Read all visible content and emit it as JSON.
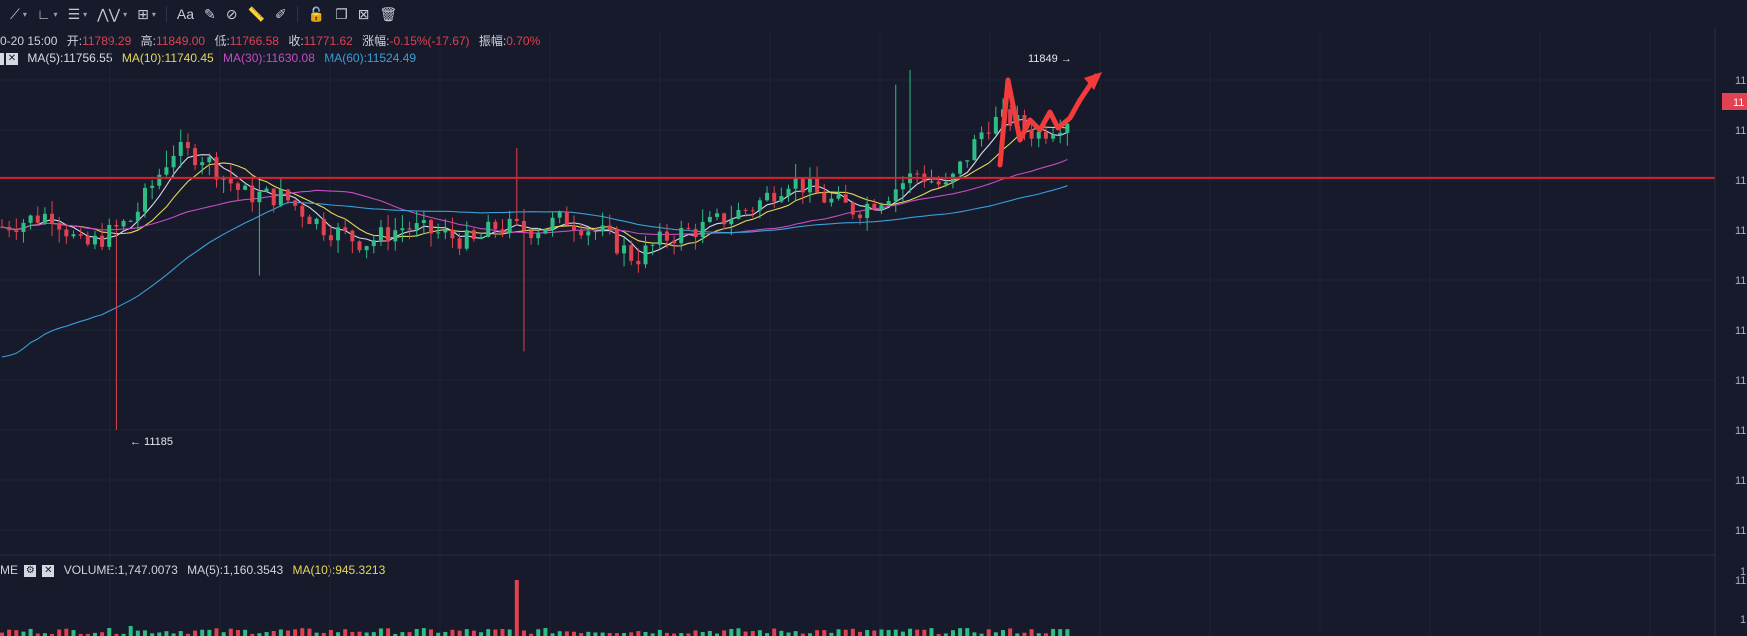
{
  "toolbar": {
    "items": [
      {
        "icon": "cross-line-icon",
        "glyph": "⟋",
        "caret": true
      },
      {
        "icon": "angle-tool-icon",
        "glyph": "∟",
        "caret": true
      },
      {
        "icon": "fib-lines-icon",
        "glyph": "☰",
        "caret": true
      },
      {
        "icon": "wave-pattern-icon",
        "glyph": "⋀⋁",
        "caret": true
      },
      {
        "icon": "rectangle-tool-icon",
        "glyph": "⊞",
        "caret": true
      },
      {
        "icon": "text-tool-icon",
        "glyph": "Aa",
        "caret": false
      },
      {
        "icon": "brush-icon",
        "glyph": "✎",
        "caret": false
      },
      {
        "icon": "eraser-icon",
        "glyph": "⊘",
        "caret": false
      },
      {
        "icon": "ruler-icon",
        "glyph": "📏",
        "caret": false
      },
      {
        "icon": "pen-icon",
        "glyph": "✐",
        "caret": false
      },
      {
        "icon": "lock-icon",
        "glyph": "🔓",
        "caret": false
      },
      {
        "icon": "copy-icon",
        "glyph": "❐",
        "caret": false
      },
      {
        "icon": "hide-icon",
        "glyph": "⊠",
        "caret": false
      },
      {
        "icon": "trash-icon",
        "glyph": "🗑",
        "caret": false
      }
    ]
  },
  "ohlc_legend": {
    "date": "0-20 15:00",
    "open_label": "开:",
    "open": "11789.29",
    "high_label": "高:",
    "high": "11849.00",
    "low_label": "低:",
    "low": "11766.58",
    "close_label": "收:",
    "close": "11771.62",
    "change_label": "涨幅:",
    "change": "-0.15%(-17.67)",
    "amp_label": "振幅:",
    "amp": "0.70%"
  },
  "ma_legend": {
    "ma5": "MA(5):11756.55",
    "ma10": "MA(10):11740.45",
    "ma30": "MA(30):11630.08",
    "ma60": "MA(60):11524.49"
  },
  "volume_legend": {
    "prefix": "ME",
    "volume": "VOLUME:1,747.0073",
    "ma5": "MA(5):1,160.3543",
    "ma10": "MA(10):945.3213"
  },
  "chart_data": {
    "type": "candlestick",
    "price_axis_ticks": [
      "11",
      "11",
      "11",
      "11",
      "11",
      "11",
      "11",
      "11",
      "11",
      "11",
      "11"
    ],
    "current_price_tag": "11",
    "volume_axis_ticks": [
      "1",
      "1"
    ],
    "annotations": {
      "high_label": "11849 →",
      "low_label": "← 11185"
    },
    "horizontal_line_price": 11650,
    "high": 11849,
    "low": 11185,
    "colors": {
      "up": "#2ebd85",
      "down": "#e0424f",
      "ma5": "#d8dbe3",
      "ma10": "#e6d85a",
      "ma30": "#c64dc3",
      "ma60": "#3a9fd8",
      "hline": "#d6232f",
      "arrow": "#f23b3b",
      "price_tag": "#e0424f"
    }
  }
}
